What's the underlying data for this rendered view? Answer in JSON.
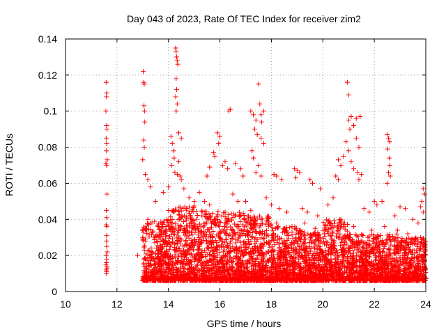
{
  "chart_data": {
    "type": "scatter",
    "title": "Day 043 of 2023, Rate Of TEC Index for receiver zim2",
    "xlabel": "GPS time / hours",
    "ylabel": "ROTI / TECUs",
    "xlim": [
      10,
      24
    ],
    "ylim": [
      0,
      0.14
    ],
    "xticks": [
      10,
      12,
      14,
      16,
      18,
      20,
      22,
      24
    ],
    "yticks": [
      0,
      0.02,
      0.04,
      0.06,
      0.08,
      0.1,
      0.12,
      0.14
    ],
    "xtick_labels": [
      "10",
      "12",
      "14",
      "16",
      "18",
      "20",
      "22",
      "24"
    ],
    "ytick_labels": [
      "0",
      "0.02",
      "0.04",
      "0.06",
      "0.08",
      "0.1",
      "0.12",
      "0.14"
    ],
    "grid": true,
    "marker": "plus",
    "color": "#ff0000",
    "series": [
      {
        "points": [
          [
            11.58,
            0.116
          ],
          [
            11.6,
            0.11
          ],
          [
            11.59,
            0.108
          ],
          [
            11.57,
            0.1
          ],
          [
            11.6,
            0.092
          ],
          [
            11.61,
            0.09
          ],
          [
            11.58,
            0.085
          ],
          [
            11.6,
            0.082
          ],
          [
            11.59,
            0.078
          ],
          [
            11.62,
            0.073
          ],
          [
            11.57,
            0.071
          ],
          [
            11.6,
            0.07
          ],
          [
            11.61,
            0.054
          ],
          [
            11.59,
            0.045
          ],
          [
            11.6,
            0.041
          ],
          [
            11.58,
            0.037
          ],
          [
            11.61,
            0.036
          ],
          [
            11.6,
            0.031
          ],
          [
            11.59,
            0.028
          ],
          [
            11.6,
            0.025
          ],
          [
            11.62,
            0.022
          ],
          [
            11.58,
            0.02
          ],
          [
            11.6,
            0.018
          ],
          [
            11.59,
            0.016
          ],
          [
            11.61,
            0.014
          ],
          [
            11.58,
            0.012
          ],
          [
            11.6,
            0.011
          ],
          [
            11.59,
            0.01
          ],
          [
            11.62,
            0.013
          ],
          [
            11.57,
            0.015
          ],
          [
            13.02,
            0.122
          ],
          [
            13.04,
            0.116
          ],
          [
            13.06,
            0.115
          ],
          [
            13.05,
            0.103
          ],
          [
            13.07,
            0.1
          ],
          [
            13.08,
            0.094
          ],
          [
            13.04,
            0.084
          ],
          [
            13.06,
            0.08
          ],
          [
            13.0,
            0.073
          ],
          [
            13.1,
            0.065
          ],
          [
            13.2,
            0.062
          ],
          [
            13.3,
            0.058
          ],
          [
            14.28,
            0.135
          ],
          [
            14.3,
            0.133
          ],
          [
            14.32,
            0.13
          ],
          [
            14.34,
            0.128
          ],
          [
            14.36,
            0.126
          ],
          [
            14.3,
            0.118
          ],
          [
            14.32,
            0.112
          ],
          [
            14.28,
            0.108
          ],
          [
            14.34,
            0.104
          ],
          [
            14.3,
            0.1
          ],
          [
            14.4,
            0.088
          ],
          [
            14.5,
            0.085
          ],
          [
            14.1,
            0.086
          ],
          [
            14.15,
            0.082
          ],
          [
            14.2,
            0.078
          ],
          [
            14.22,
            0.074
          ],
          [
            14.12,
            0.07
          ],
          [
            14.4,
            0.072
          ],
          [
            14.25,
            0.066
          ],
          [
            14.35,
            0.065
          ],
          [
            14.45,
            0.064
          ],
          [
            14.5,
            0.062
          ],
          [
            15.9,
            0.088
          ],
          [
            16.0,
            0.086
          ],
          [
            15.95,
            0.082
          ],
          [
            16.4,
            0.101
          ],
          [
            16.35,
            0.1
          ],
          [
            15.8,
            0.075
          ],
          [
            16.1,
            0.07
          ],
          [
            16.2,
            0.072
          ],
          [
            16.3,
            0.068
          ],
          [
            15.75,
            0.077
          ],
          [
            15.6,
            0.069
          ],
          [
            15.5,
            0.064
          ],
          [
            16.6,
            0.071
          ],
          [
            16.8,
            0.068
          ],
          [
            16.9,
            0.064
          ],
          [
            17.2,
            0.1
          ],
          [
            17.3,
            0.098
          ],
          [
            17.4,
            0.095
          ],
          [
            17.5,
            0.115
          ],
          [
            17.55,
            0.104
          ],
          [
            17.6,
            0.098
          ],
          [
            17.62,
            0.094
          ],
          [
            17.7,
            0.1
          ],
          [
            17.35,
            0.09
          ],
          [
            17.45,
            0.087
          ],
          [
            17.6,
            0.085
          ],
          [
            17.7,
            0.082
          ],
          [
            17.25,
            0.078
          ],
          [
            17.3,
            0.074
          ],
          [
            17.5,
            0.07
          ],
          [
            17.4,
            0.066
          ],
          [
            17.6,
            0.064
          ],
          [
            18.1,
            0.065
          ],
          [
            18.2,
            0.064
          ],
          [
            18.4,
            0.062
          ],
          [
            18.9,
            0.068
          ],
          [
            19.0,
            0.067
          ],
          [
            19.1,
            0.066
          ],
          [
            18.95,
            0.063
          ],
          [
            19.5,
            0.062
          ],
          [
            19.6,
            0.06
          ],
          [
            19.9,
            0.057
          ],
          [
            20.6,
            0.073
          ],
          [
            20.7,
            0.07
          ],
          [
            20.8,
            0.075
          ],
          [
            20.95,
            0.116
          ],
          [
            21.0,
            0.109
          ],
          [
            21.1,
            0.097
          ],
          [
            21.0,
            0.095
          ],
          [
            21.05,
            0.09
          ],
          [
            21.2,
            0.092
          ],
          [
            21.3,
            0.096
          ],
          [
            21.45,
            0.097
          ],
          [
            21.3,
            0.085
          ],
          [
            21.4,
            0.08
          ],
          [
            20.9,
            0.083
          ],
          [
            21.0,
            0.078
          ],
          [
            21.1,
            0.072
          ],
          [
            21.2,
            0.068
          ],
          [
            21.35,
            0.066
          ],
          [
            21.5,
            0.065
          ],
          [
            21.4,
            0.062
          ],
          [
            20.5,
            0.064
          ],
          [
            20.6,
            0.062
          ],
          [
            22.5,
            0.087
          ],
          [
            22.55,
            0.085
          ],
          [
            22.6,
            0.083
          ],
          [
            22.52,
            0.079
          ],
          [
            22.58,
            0.074
          ],
          [
            22.6,
            0.07
          ],
          [
            22.55,
            0.066
          ],
          [
            22.62,
            0.064
          ],
          [
            22.5,
            0.06
          ],
          [
            22.0,
            0.05
          ],
          [
            22.1,
            0.048
          ],
          [
            22.3,
            0.05
          ],
          [
            23.0,
            0.047
          ],
          [
            23.2,
            0.046
          ],
          [
            23.9,
            0.057
          ],
          [
            23.95,
            0.054
          ],
          [
            23.85,
            0.05
          ],
          [
            23.8,
            0.047
          ],
          [
            23.9,
            0.044
          ],
          [
            12.8,
            0.02
          ],
          [
            13.0,
            0.03
          ],
          [
            13.2,
            0.04
          ],
          [
            13.5,
            0.05
          ],
          [
            13.8,
            0.055
          ],
          [
            14.0,
            0.058
          ],
          [
            14.6,
            0.057
          ],
          [
            14.8,
            0.052
          ],
          [
            15.0,
            0.05
          ],
          [
            15.2,
            0.055
          ],
          [
            15.4,
            0.05
          ],
          [
            15.6,
            0.048
          ],
          [
            16.5,
            0.054
          ],
          [
            16.7,
            0.05
          ],
          [
            17.0,
            0.05
          ],
          [
            17.8,
            0.052
          ],
          [
            18.0,
            0.048
          ],
          [
            18.3,
            0.046
          ],
          [
            18.6,
            0.044
          ],
          [
            19.2,
            0.046
          ],
          [
            19.4,
            0.044
          ],
          [
            19.8,
            0.042
          ],
          [
            20.2,
            0.048
          ],
          [
            20.4,
            0.052
          ],
          [
            21.6,
            0.046
          ],
          [
            21.8,
            0.044
          ],
          [
            22.8,
            0.042
          ],
          [
            23.5,
            0.04
          ],
          [
            23.7,
            0.038
          ],
          [
            13.1,
            0.035
          ],
          [
            13.3,
            0.038
          ],
          [
            13.6,
            0.036
          ],
          [
            14.2,
            0.045
          ],
          [
            14.9,
            0.04
          ],
          [
            15.3,
            0.042
          ],
          [
            15.8,
            0.04
          ],
          [
            16.2,
            0.044
          ],
          [
            16.8,
            0.042
          ],
          [
            17.2,
            0.045
          ],
          [
            17.6,
            0.04
          ],
          [
            18.2,
            0.038
          ],
          [
            18.8,
            0.036
          ],
          [
            19.3,
            0.038
          ],
          [
            19.7,
            0.035
          ],
          [
            20.1,
            0.037
          ],
          [
            20.7,
            0.04
          ],
          [
            21.2,
            0.036
          ],
          [
            21.9,
            0.034
          ],
          [
            22.4,
            0.036
          ],
          [
            22.9,
            0.034
          ],
          [
            23.3,
            0.032
          ],
          [
            23.8,
            0.03
          ]
        ]
      }
    ],
    "band": {
      "description_free": true,
      "segments": [
        [
          13.0,
          14.0,
          0.006,
          0.04
        ],
        [
          14.0,
          15.0,
          0.006,
          0.048
        ],
        [
          15.0,
          16.0,
          0.006,
          0.045
        ],
        [
          16.0,
          17.0,
          0.006,
          0.044
        ],
        [
          17.0,
          18.0,
          0.006,
          0.042
        ],
        [
          18.0,
          19.0,
          0.006,
          0.036
        ],
        [
          19.0,
          20.0,
          0.006,
          0.034
        ],
        [
          20.0,
          21.0,
          0.006,
          0.04
        ],
        [
          21.0,
          22.0,
          0.006,
          0.032
        ],
        [
          22.0,
          23.0,
          0.006,
          0.032
        ],
        [
          23.0,
          24.0,
          0.006,
          0.03
        ]
      ]
    }
  }
}
